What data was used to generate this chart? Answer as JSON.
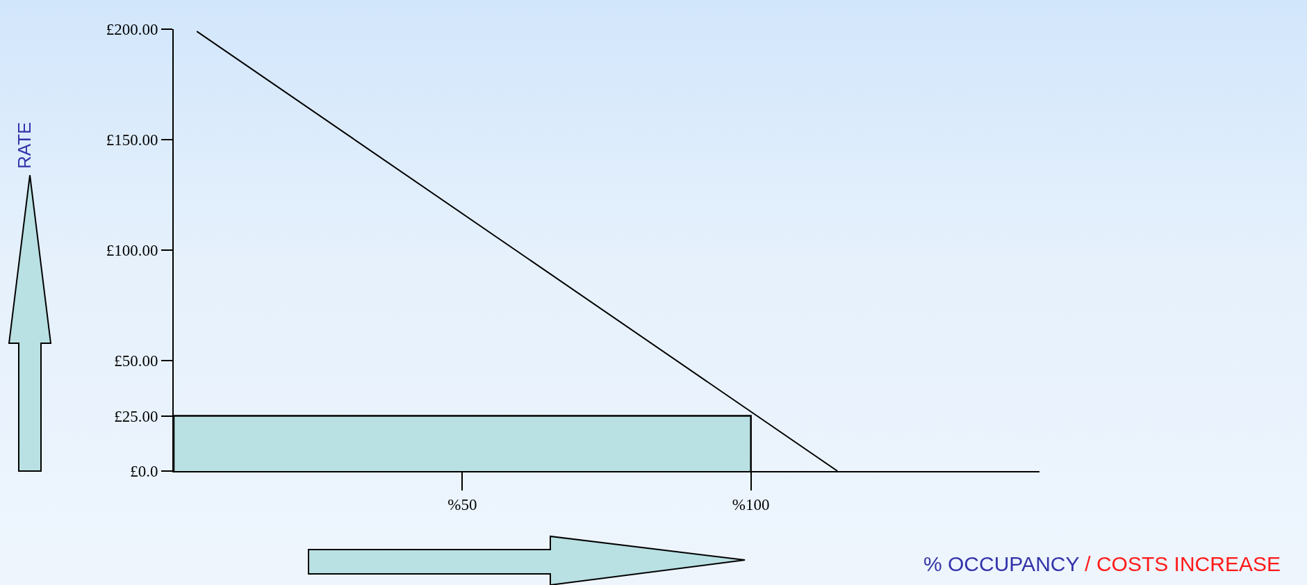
{
  "chart_data": {
    "type": "line",
    "ylabel": "RATE",
    "xlabel": "% OCCUPANCY / COSTS INCREASE",
    "series": [
      {
        "type": "area",
        "color": "#b9e0e3",
        "x": [
          0,
          0,
          100,
          100
        ],
        "values": [
          0,
          25,
          25,
          0
        ]
      },
      {
        "color": "#000000",
        "x": [
          4,
          115
        ],
        "values": [
          199,
          0
        ]
      }
    ],
    "xlim": [
      0,
      150
    ],
    "ylim": [
      0,
      200
    ],
    "xticks": [
      {
        "value": 50,
        "label": "%50"
      },
      {
        "value": 100,
        "label": "%100"
      }
    ],
    "yticks": [
      {
        "value": 0,
        "label": "£0.0"
      },
      {
        "value": 25,
        "label": "£25.00"
      },
      {
        "value": 50,
        "label": "£50.00"
      },
      {
        "value": 100,
        "label": "£100.00"
      },
      {
        "value": 150,
        "label": "£150.00"
      },
      {
        "value": 200,
        "label": "£200.00"
      }
    ],
    "grid": false,
    "legend": false
  }
}
